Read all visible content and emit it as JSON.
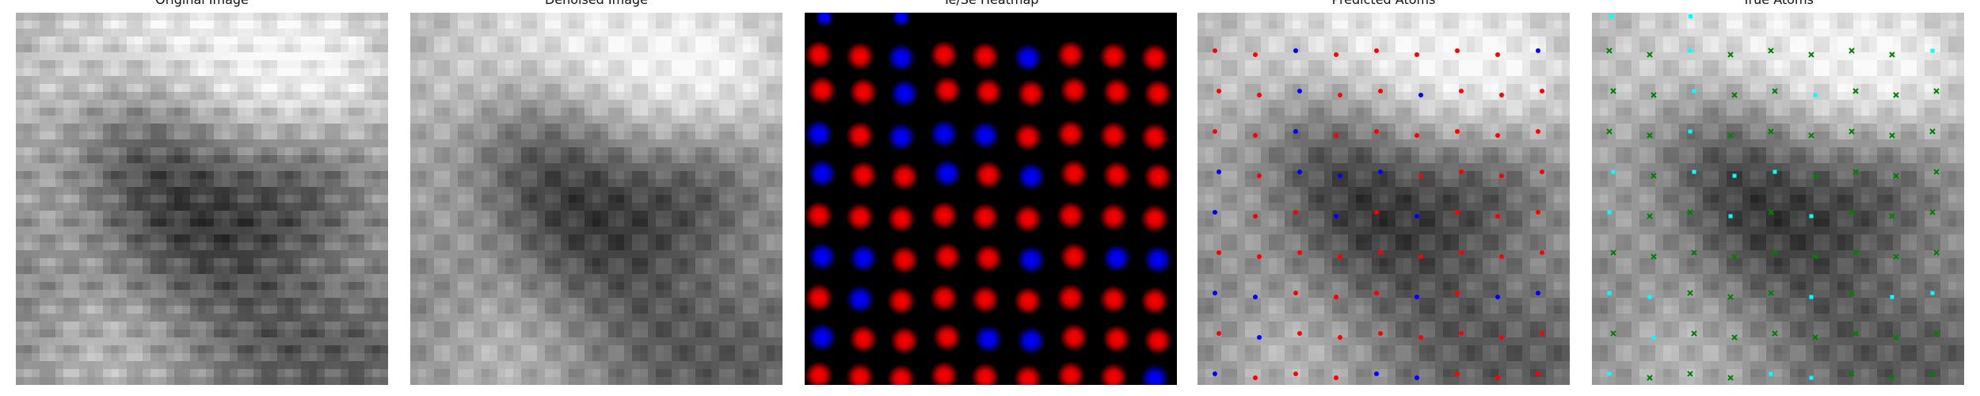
{
  "figure": {
    "panels": [
      {
        "title": "Original Image"
      },
      {
        "title": "Denoised Image"
      },
      {
        "title": "Te/Se Heatmap"
      },
      {
        "title": "Predicted Atoms"
      },
      {
        "title": "True Atoms"
      }
    ]
  },
  "colors": {
    "te_red": "#ff0000",
    "se_blue": "#0000ff",
    "true_cyan": "#00ffff",
    "true_green": "#008000",
    "background_black": "#000000"
  }
}
